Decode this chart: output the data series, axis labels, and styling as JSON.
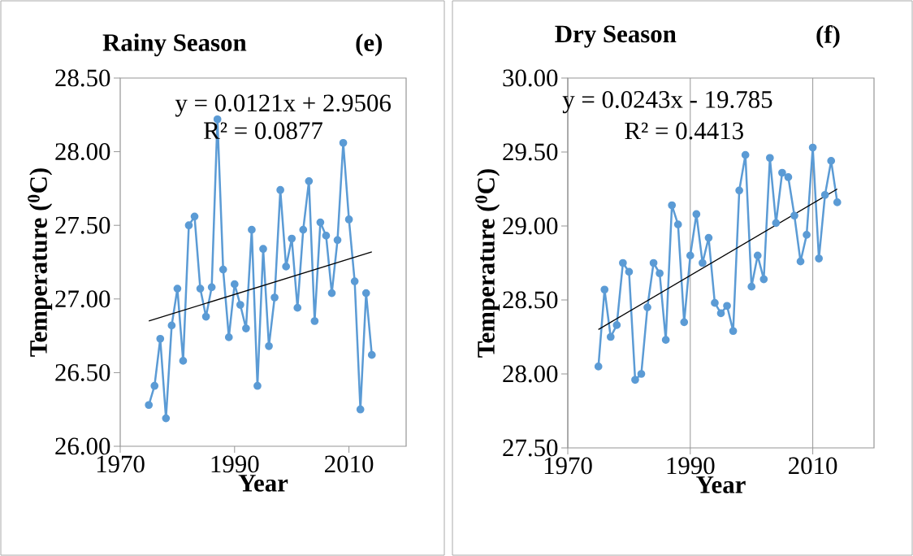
{
  "chart_data": [
    {
      "type": "line",
      "title": "Rainy Season",
      "xlabel": "Year",
      "ylabel": "Temperature ($^{0}$C)",
      "annotations": [
        "(e)",
        "y = 0.0121x + 2.9506",
        "R² = 0.0877"
      ],
      "xlim": [
        1970,
        2020
      ],
      "xticks": [
        1970,
        1990,
        2010
      ],
      "ylim": [
        26,
        28.5
      ],
      "yticks": [
        {
          "value": 26,
          "label": "26.00"
        },
        {
          "value": 26.5,
          "label": "26.50"
        },
        {
          "value": 27,
          "label": "27.00"
        },
        {
          "value": 27.5,
          "label": "27.50"
        },
        {
          "value": 28,
          "label": "28.00"
        },
        {
          "value": 28.5,
          "label": "28.50"
        }
      ],
      "grid": false,
      "series": [
        {
          "color": "#5b9bd5",
          "marker": "circle",
          "x": [
            1975,
            1976,
            1977,
            1978,
            1979,
            1980,
            1981,
            1982,
            1983,
            1984,
            1985,
            1986,
            1987,
            1988,
            1989,
            1990,
            1991,
            1992,
            1993,
            1994,
            1995,
            1996,
            1997,
            1998,
            1999,
            2000,
            2001,
            2002,
            2003,
            2004,
            2005,
            2006,
            2007,
            2008,
            2009,
            2010,
            2011,
            2012,
            2013,
            2014
          ],
          "values": [
            26.28,
            26.41,
            26.73,
            26.19,
            26.82,
            27.07,
            26.58,
            27.5,
            27.56,
            27.07,
            26.88,
            27.08,
            28.22,
            27.2,
            26.74,
            27.1,
            26.96,
            26.8,
            27.47,
            26.41,
            27.34,
            26.68,
            27.01,
            27.74,
            27.22,
            27.41,
            26.94,
            27.47,
            27.8,
            26.85,
            27.52,
            27.43,
            27.04,
            27.4,
            28.06,
            27.54,
            27.12,
            26.25,
            27.04,
            26.62
          ]
        },
        {
          "color": "#000000",
          "marker": "none",
          "x": [
            1975,
            2014
          ],
          "values": [
            26.85,
            27.32
          ]
        }
      ]
    },
    {
      "type": "line",
      "title": "Dry Season",
      "xlabel": "Year",
      "ylabel": "Temperature ($^{0}$C)",
      "annotations": [
        "(f)",
        "y = 0.0243x - 19.785",
        "R² = 0.4413"
      ],
      "xlim": [
        1970,
        2020
      ],
      "xticks": [
        1970,
        1990,
        2010
      ],
      "ylim": [
        27.5,
        30
      ],
      "yticks": [
        {
          "value": 27.5,
          "label": "27.50"
        },
        {
          "value": 28,
          "label": "28.00"
        },
        {
          "value": 28.5,
          "label": "28.50"
        },
        {
          "value": 29,
          "label": "29.00"
        },
        {
          "value": 29.5,
          "label": "29.50"
        },
        {
          "value": 30,
          "label": "30.00"
        }
      ],
      "grid": "x",
      "series": [
        {
          "color": "#5b9bd5",
          "marker": "circle",
          "x": [
            1975,
            1976,
            1977,
            1978,
            1979,
            1980,
            1981,
            1982,
            1983,
            1984,
            1985,
            1986,
            1987,
            1988,
            1989,
            1990,
            1991,
            1992,
            1993,
            1994,
            1995,
            1996,
            1997,
            1998,
            1999,
            2000,
            2001,
            2002,
            2003,
            2004,
            2005,
            2006,
            2007,
            2008,
            2009,
            2010,
            2011,
            2012,
            2013,
            2014
          ],
          "values": [
            28.05,
            28.57,
            28.25,
            28.33,
            28.75,
            28.69,
            27.96,
            28.0,
            28.45,
            28.75,
            28.68,
            28.23,
            29.14,
            29.01,
            28.35,
            28.8,
            29.08,
            28.75,
            28.92,
            28.48,
            28.41,
            28.46,
            28.29,
            29.24,
            29.48,
            28.59,
            28.8,
            28.64,
            29.46,
            29.02,
            29.36,
            29.33,
            29.07,
            28.76,
            28.94,
            29.53,
            28.78,
            29.21,
            29.44,
            29.16
          ]
        },
        {
          "color": "#000000",
          "marker": "none",
          "x": [
            1975,
            2014
          ],
          "values": [
            28.3,
            29.25
          ]
        }
      ]
    }
  ]
}
